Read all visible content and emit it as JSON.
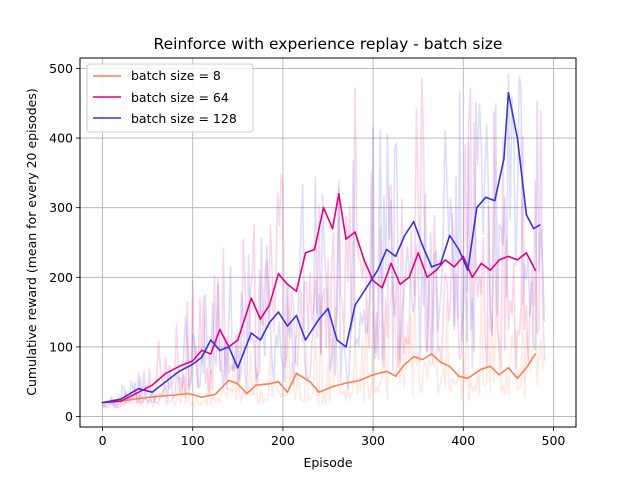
{
  "chart_data": {
    "type": "line",
    "title": "Reinforce with experience replay - batch size",
    "xlabel": "Episode",
    "ylabel": "Cumulative reward (mean for every 20 episodes)",
    "xlim": [
      -25,
      525
    ],
    "ylim": [
      -15,
      515
    ],
    "xticks": [
      0,
      100,
      200,
      300,
      400,
      500
    ],
    "yticks": [
      0,
      100,
      200,
      300,
      400,
      500
    ],
    "grid": true,
    "legend_position": "top-left",
    "series": [
      {
        "name": "batch size = 8",
        "color": "#ff7f50",
        "smoothed": [
          [
            0,
            20
          ],
          [
            20,
            22
          ],
          [
            40,
            26
          ],
          [
            60,
            29
          ],
          [
            80,
            31
          ],
          [
            95,
            33
          ],
          [
            110,
            28
          ],
          [
            125,
            32
          ],
          [
            140,
            52
          ],
          [
            150,
            47
          ],
          [
            160,
            33
          ],
          [
            170,
            45
          ],
          [
            185,
            47
          ],
          [
            195,
            50
          ],
          [
            205,
            35
          ],
          [
            215,
            62
          ],
          [
            230,
            50
          ],
          [
            240,
            35
          ],
          [
            255,
            43
          ],
          [
            270,
            48
          ],
          [
            285,
            52
          ],
          [
            300,
            60
          ],
          [
            315,
            65
          ],
          [
            325,
            58
          ],
          [
            335,
            75
          ],
          [
            345,
            86
          ],
          [
            355,
            82
          ],
          [
            365,
            90
          ],
          [
            375,
            78
          ],
          [
            385,
            72
          ],
          [
            395,
            58
          ],
          [
            405,
            55
          ],
          [
            420,
            68
          ],
          [
            430,
            72
          ],
          [
            440,
            60
          ],
          [
            450,
            70
          ],
          [
            460,
            55
          ],
          [
            470,
            70
          ],
          [
            480,
            90
          ]
        ],
        "raw_max": [
          [
            0,
            25
          ],
          [
            50,
            55
          ],
          [
            100,
            80
          ],
          [
            150,
            110
          ],
          [
            200,
            160
          ],
          [
            250,
            180
          ],
          [
            300,
            200
          ],
          [
            350,
            230
          ],
          [
            400,
            200
          ],
          [
            450,
            240
          ],
          [
            490,
            220
          ]
        ]
      },
      {
        "name": "batch size = 64",
        "color": "#e6007e",
        "smoothed": [
          [
            0,
            20
          ],
          [
            20,
            22
          ],
          [
            40,
            35
          ],
          [
            55,
            45
          ],
          [
            70,
            62
          ],
          [
            85,
            72
          ],
          [
            100,
            80
          ],
          [
            110,
            95
          ],
          [
            120,
            90
          ],
          [
            130,
            125
          ],
          [
            140,
            100
          ],
          [
            150,
            110
          ],
          [
            165,
            170
          ],
          [
            175,
            140
          ],
          [
            185,
            160
          ],
          [
            195,
            205
          ],
          [
            205,
            190
          ],
          [
            215,
            180
          ],
          [
            225,
            235
          ],
          [
            235,
            240
          ],
          [
            245,
            300
          ],
          [
            255,
            270
          ],
          [
            262,
            320
          ],
          [
            270,
            255
          ],
          [
            280,
            265
          ],
          [
            290,
            225
          ],
          [
            300,
            195
          ],
          [
            310,
            185
          ],
          [
            320,
            220
          ],
          [
            330,
            190
          ],
          [
            340,
            200
          ],
          [
            350,
            235
          ],
          [
            360,
            200
          ],
          [
            370,
            210
          ],
          [
            380,
            225
          ],
          [
            390,
            215
          ],
          [
            400,
            230
          ],
          [
            410,
            200
          ],
          [
            420,
            220
          ],
          [
            430,
            210
          ],
          [
            440,
            225
          ],
          [
            450,
            230
          ],
          [
            460,
            225
          ],
          [
            470,
            235
          ],
          [
            480,
            210
          ]
        ],
        "raw_max": [
          [
            0,
            30
          ],
          [
            50,
            80
          ],
          [
            100,
            200
          ],
          [
            150,
            280
          ],
          [
            200,
            380
          ],
          [
            250,
            500
          ],
          [
            300,
            500
          ],
          [
            350,
            500
          ],
          [
            400,
            480
          ],
          [
            450,
            500
          ],
          [
            490,
            480
          ]
        ]
      },
      {
        "name": "batch size = 128",
        "color": "#3333e6",
        "smoothed": [
          [
            0,
            20
          ],
          [
            20,
            25
          ],
          [
            40,
            40
          ],
          [
            55,
            35
          ],
          [
            70,
            50
          ],
          [
            85,
            65
          ],
          [
            100,
            75
          ],
          [
            110,
            85
          ],
          [
            120,
            110
          ],
          [
            130,
            95
          ],
          [
            140,
            100
          ],
          [
            150,
            70
          ],
          [
            165,
            120
          ],
          [
            175,
            110
          ],
          [
            185,
            135
          ],
          [
            195,
            150
          ],
          [
            205,
            130
          ],
          [
            215,
            145
          ],
          [
            225,
            110
          ],
          [
            240,
            140
          ],
          [
            250,
            155
          ],
          [
            260,
            110
          ],
          [
            270,
            100
          ],
          [
            280,
            160
          ],
          [
            295,
            190
          ],
          [
            305,
            210
          ],
          [
            315,
            240
          ],
          [
            325,
            230
          ],
          [
            335,
            260
          ],
          [
            345,
            280
          ],
          [
            355,
            245
          ],
          [
            365,
            215
          ],
          [
            375,
            220
          ],
          [
            385,
            260
          ],
          [
            395,
            240
          ],
          [
            405,
            210
          ],
          [
            415,
            300
          ],
          [
            425,
            315
          ],
          [
            435,
            310
          ],
          [
            445,
            370
          ],
          [
            450,
            465
          ],
          [
            460,
            400
          ],
          [
            470,
            290
          ],
          [
            478,
            270
          ],
          [
            485,
            275
          ]
        ],
        "raw_max": [
          [
            0,
            30
          ],
          [
            50,
            90
          ],
          [
            100,
            160
          ],
          [
            150,
            260
          ],
          [
            200,
            320
          ],
          [
            250,
            380
          ],
          [
            300,
            420
          ],
          [
            350,
            470
          ],
          [
            400,
            500
          ],
          [
            450,
            500
          ],
          [
            490,
            500
          ]
        ]
      }
    ]
  }
}
